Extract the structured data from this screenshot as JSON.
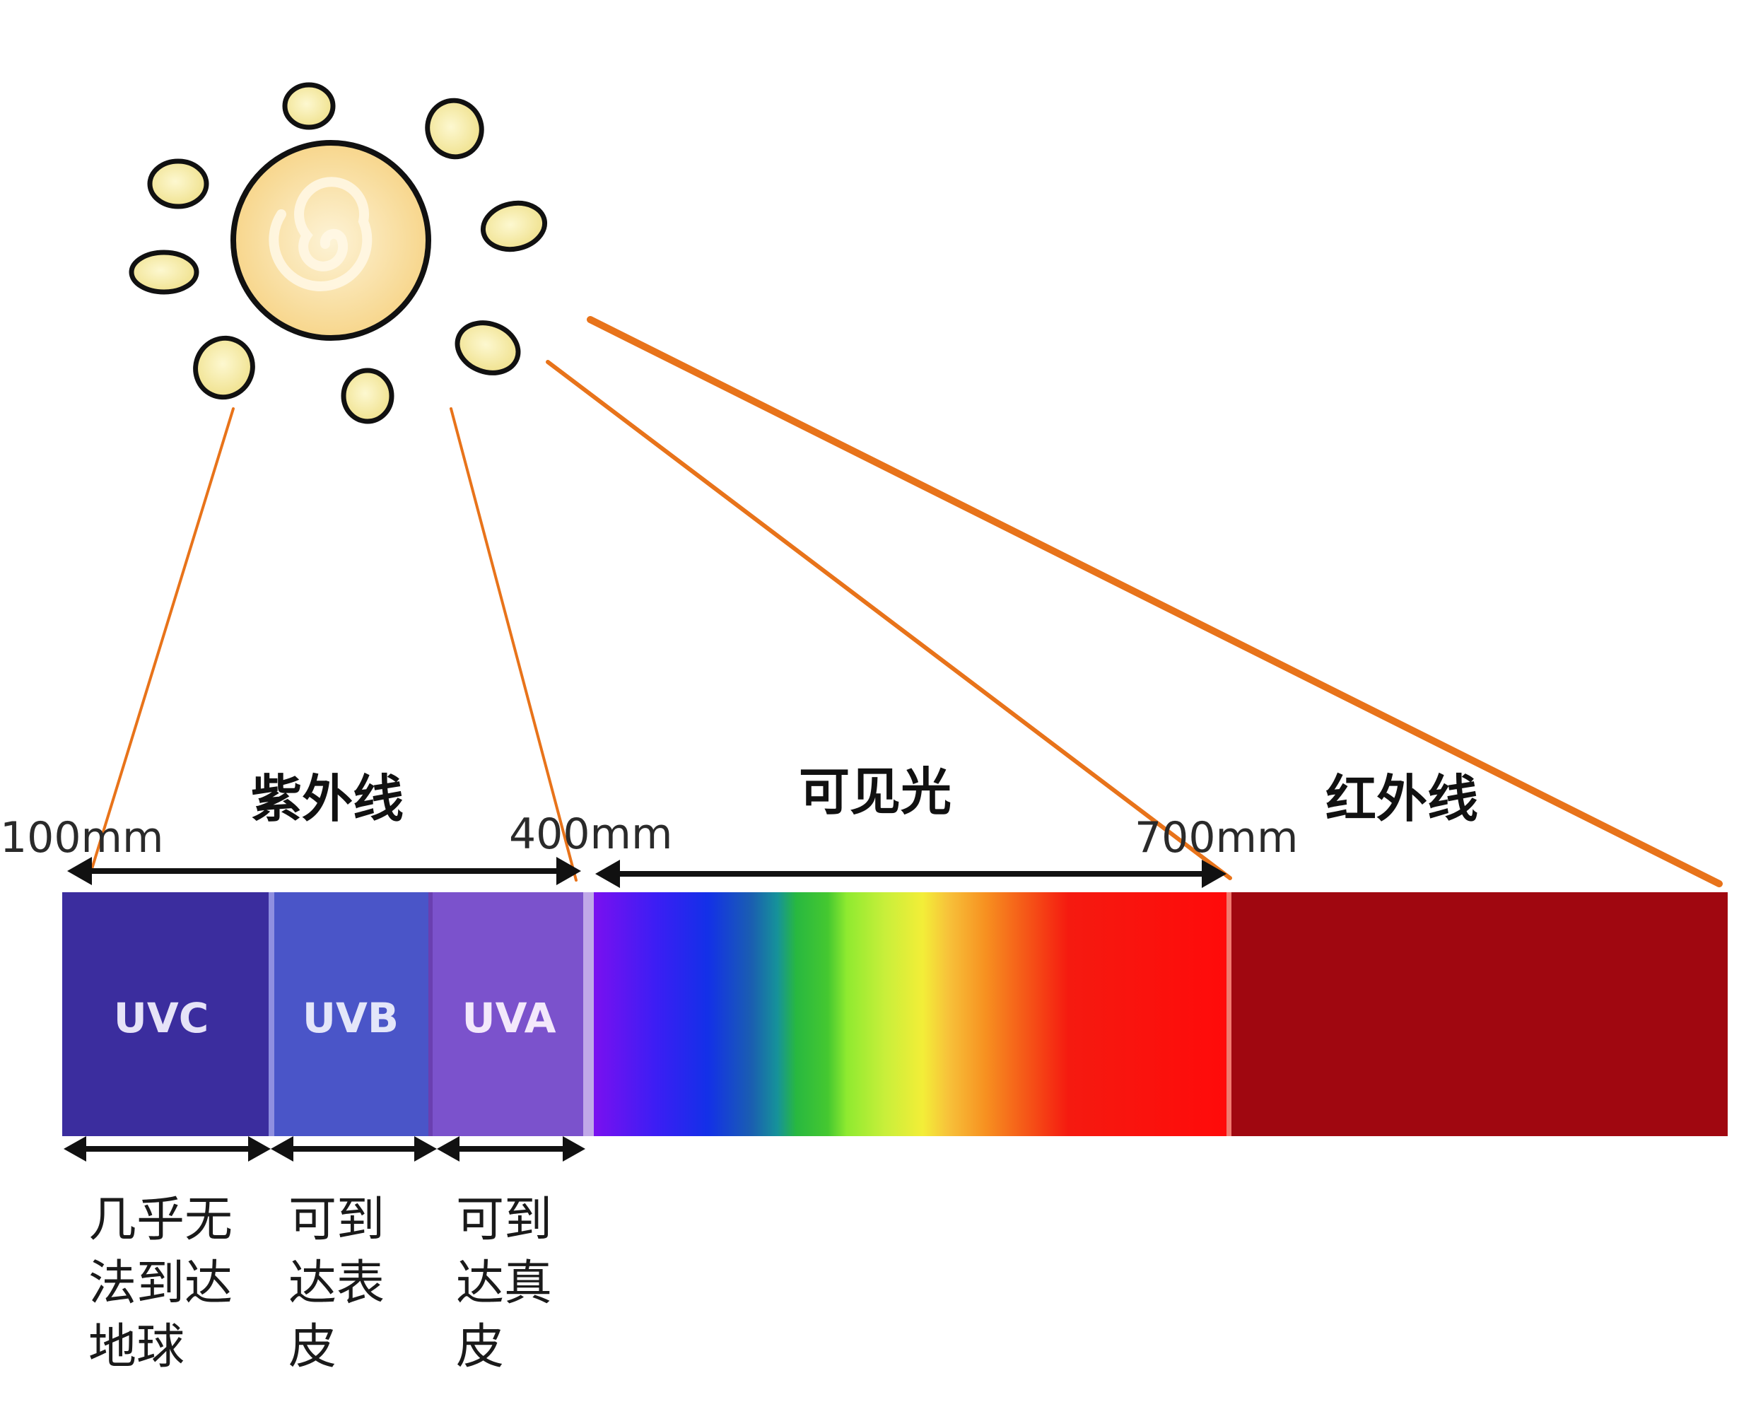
{
  "headers": {
    "uv": "紫外线",
    "visible": "可见光",
    "infrared": "红外线"
  },
  "ticks": {
    "t100": "100mm",
    "t400": "400mm",
    "t700": "700mm"
  },
  "bands": {
    "uvc": "UVC",
    "uvb": "UVB",
    "uva": "UVA"
  },
  "notes": {
    "uvc": [
      "几乎无",
      "法到达",
      "地球"
    ],
    "uvb": [
      "可到",
      "达表",
      "皮"
    ],
    "uva": [
      "可到",
      "达真",
      "皮"
    ]
  },
  "colors": {
    "uvc": "#3b2d9e",
    "uvb": "#4a55c8",
    "uva": "#7b52cc",
    "infrared": "#a00710",
    "rays": "#e8731a",
    "sun": "#f8dc96"
  }
}
